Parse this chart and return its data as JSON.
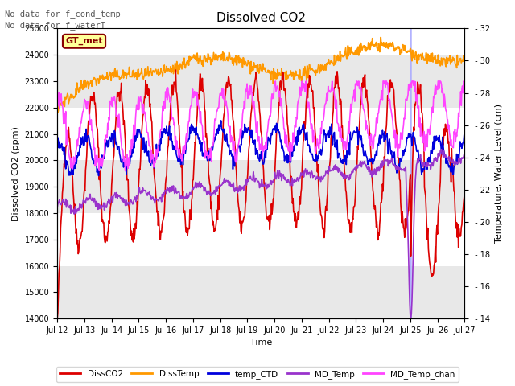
{
  "title": "Dissolved CO2",
  "xlabel": "Time",
  "ylabel_left": "Dissolved CO2 (ppm)",
  "ylabel_right": "Temperature, Water Level (cm)",
  "ylim_left": [
    14000,
    25000
  ],
  "ylim_right": [
    14,
    32
  ],
  "annotation1": "No data for f_cond_temp",
  "annotation2": "No data for f_waterT",
  "gt_met_label": "GT_met",
  "xtick_labels": [
    "Jul 12",
    "Jul 13",
    "Jul 14",
    "Jul 15",
    "Jul 16",
    "Jul 17",
    "Jul 18",
    "Jul 19",
    "Jul 20",
    "Jul 21",
    "Jul 22",
    "Jul 23",
    "Jul 24",
    "Jul 25",
    "Jul 26",
    "Jul 27"
  ],
  "yticks_left": [
    14000,
    15000,
    16000,
    17000,
    18000,
    19000,
    20000,
    21000,
    22000,
    23000,
    24000,
    25000
  ],
  "yticks_right": [
    14,
    16,
    18,
    20,
    22,
    24,
    26,
    28,
    30,
    32
  ],
  "colors": {
    "DissCO2": "#dd0000",
    "DissTemp": "#ff9900",
    "temp_CTD": "#0000dd",
    "MD_Temp": "#9933cc",
    "MD_Temp_chan": "#ff44ff"
  },
  "background_color": "#ffffff",
  "strip_light": "#e8e8e8",
  "strip_dark": "#ffffff",
  "vline_color": "#aaaaff",
  "gt_met_bg": "#ffff99",
  "gt_met_border": "#880000",
  "gt_met_text": "#880000"
}
